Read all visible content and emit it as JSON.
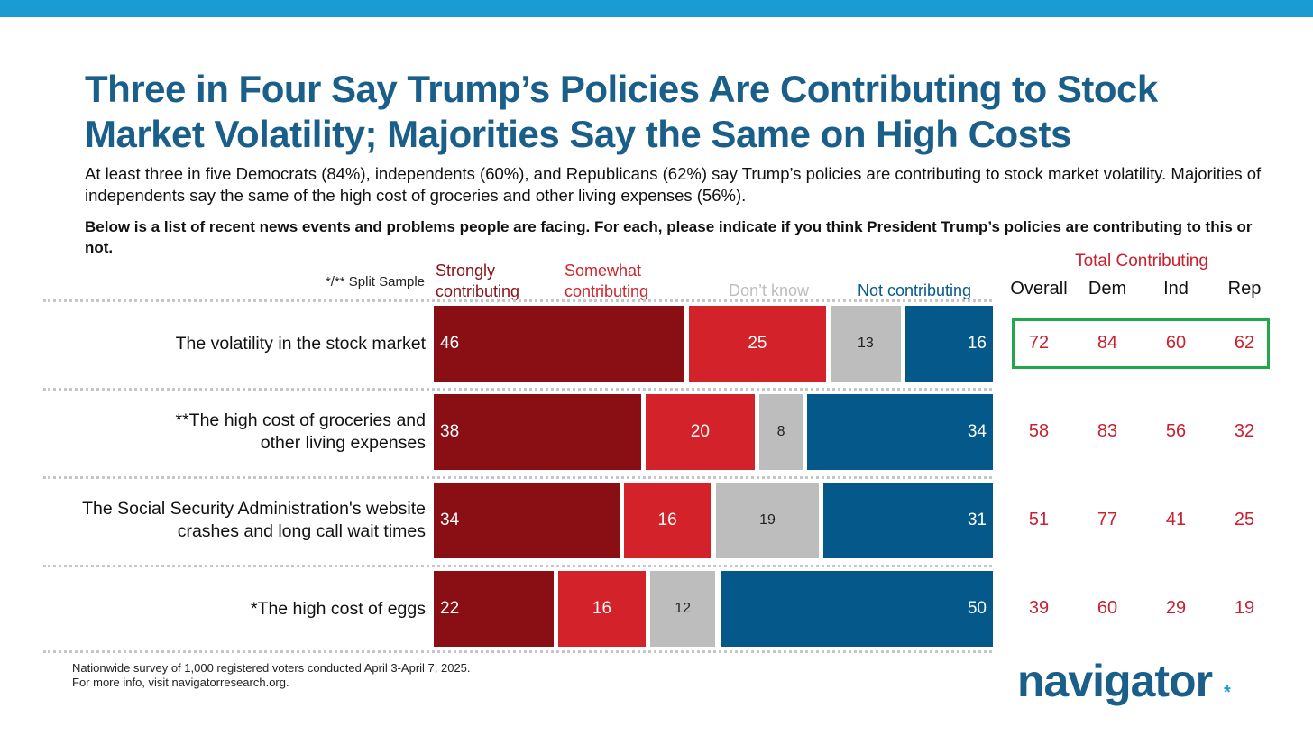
{
  "header": {
    "title": "Three in Four Say Trump’s Policies Are Contributing to Stock Market Volatility; Majorities Say the Same on High Costs",
    "subtitle": "At least three in five Democrats (84%), independents (60%), and Republicans (62%) say Trump’s policies are contributing to stock market volatility. Majorities of independents say the same of the high cost of groceries and other living expenses (56%).",
    "question": "Below is a list of recent news events and problems people are facing. For each, please indicate if you think President Trump’s policies are contributing to this or not."
  },
  "split_sample_note": "*/** Split Sample",
  "colors": {
    "strongly": "#8a0f14",
    "somewhat": "#d32229",
    "dont_know": "#bdbdbd",
    "not_contributing": "#04598a",
    "total_text": "#c8202f",
    "highlight_border": "#22a84a",
    "title": "#1a5e8a",
    "top_bar": "#1a9bd1"
  },
  "chart_data": {
    "type": "bar",
    "orientation": "horizontal",
    "stacked": true,
    "categories": [
      "The volatility in the stock market",
      "**The high cost of groceries and other living expenses",
      "The Social Security Administration's website crashes and long call wait times",
      "*The high cost of eggs"
    ],
    "series": [
      {
        "name": "Strongly contributing",
        "values": [
          46,
          38,
          34,
          22
        ]
      },
      {
        "name": "Somewhat contributing",
        "values": [
          25,
          20,
          16,
          16
        ]
      },
      {
        "name": "Don’t know",
        "values": [
          13,
          8,
          19,
          12
        ]
      },
      {
        "name": "Not contributing",
        "values": [
          16,
          34,
          31,
          50
        ]
      }
    ],
    "legend_placement": "top",
    "table": {
      "title": "Total Contributing",
      "columns": [
        "Overall",
        "Dem",
        "Ind",
        "Rep"
      ],
      "rows": [
        [
          72,
          84,
          60,
          62
        ],
        [
          58,
          83,
          56,
          32
        ],
        [
          51,
          77,
          41,
          25
        ],
        [
          39,
          60,
          29,
          19
        ]
      ],
      "highlighted_row": 0
    }
  },
  "footnote": {
    "line1": "Nationwide survey of 1,000 registered voters conducted April 3-April 7, 2025.",
    "line2": "For more info, visit navigatorresearch.org."
  },
  "logo": {
    "text": "navigator",
    "mark": "*"
  }
}
